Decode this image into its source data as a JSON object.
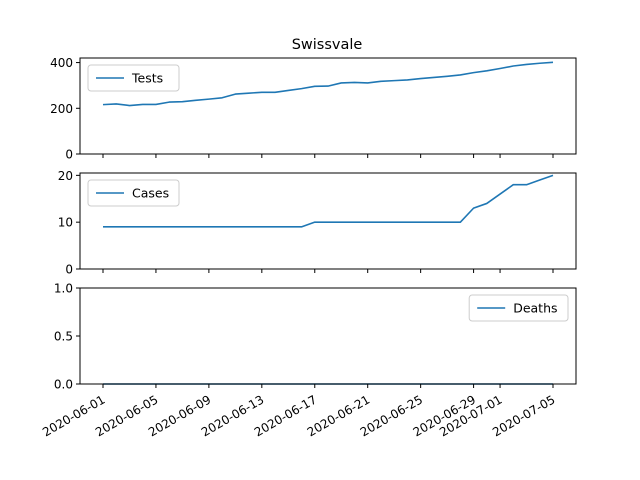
{
  "chart_data": {
    "type": "line",
    "title": "Swissvale",
    "line_color": "#1f77b4",
    "x_tick_labels": [
      "2020-06-01",
      "2020-06-05",
      "2020-06-09",
      "2020-06-13",
      "2020-06-17",
      "2020-06-21",
      "2020-06-25",
      "2020-06-29",
      "2020-07-01",
      "2020-07-05"
    ],
    "x": [
      "2020-06-01",
      "2020-06-02",
      "2020-06-03",
      "2020-06-04",
      "2020-06-05",
      "2020-06-06",
      "2020-06-07",
      "2020-06-08",
      "2020-06-09",
      "2020-06-10",
      "2020-06-11",
      "2020-06-12",
      "2020-06-13",
      "2020-06-14",
      "2020-06-15",
      "2020-06-16",
      "2020-06-17",
      "2020-06-18",
      "2020-06-19",
      "2020-06-20",
      "2020-06-21",
      "2020-06-22",
      "2020-06-23",
      "2020-06-24",
      "2020-06-25",
      "2020-06-26",
      "2020-06-27",
      "2020-06-28",
      "2020-06-29",
      "2020-06-30",
      "2020-07-01",
      "2020-07-02",
      "2020-07-03",
      "2020-07-04",
      "2020-07-05"
    ],
    "panels": [
      {
        "series_name": "Tests",
        "legend_position": "upper-left",
        "ylim": [
          0,
          420
        ],
        "y_ticks": [
          0,
          200,
          400
        ],
        "values": [
          216,
          219,
          212,
          217,
          217,
          227,
          229,
          235,
          240,
          246,
          262,
          266,
          270,
          270,
          278,
          286,
          296,
          297,
          311,
          313,
          311,
          318,
          321,
          324,
          330,
          335,
          340,
          346,
          356,
          364,
          374,
          385,
          392,
          397,
          401
        ]
      },
      {
        "series_name": "Cases",
        "legend_position": "upper-left",
        "ylim": [
          0,
          20.5
        ],
        "y_ticks": [
          0,
          10,
          20
        ],
        "values": [
          9,
          9,
          9,
          9,
          9,
          9,
          9,
          9,
          9,
          9,
          9,
          9,
          9,
          9,
          9,
          9,
          10,
          10,
          10,
          10,
          10,
          10,
          10,
          10,
          10,
          10,
          10,
          10,
          13,
          14,
          16,
          18,
          18,
          19,
          20
        ]
      },
      {
        "series_name": "Deaths",
        "legend_position": "upper-right",
        "ylim": [
          0,
          1.0
        ],
        "y_ticks": [
          "0.0",
          "0.5",
          "1.0"
        ],
        "values": [
          0,
          0,
          0,
          0,
          0,
          0,
          0,
          0,
          0,
          0,
          0,
          0,
          0,
          0,
          0,
          0,
          0,
          0,
          0,
          0,
          0,
          0,
          0,
          0,
          0,
          0,
          0,
          0,
          0,
          0,
          0,
          0,
          0,
          0,
          0
        ]
      }
    ]
  }
}
